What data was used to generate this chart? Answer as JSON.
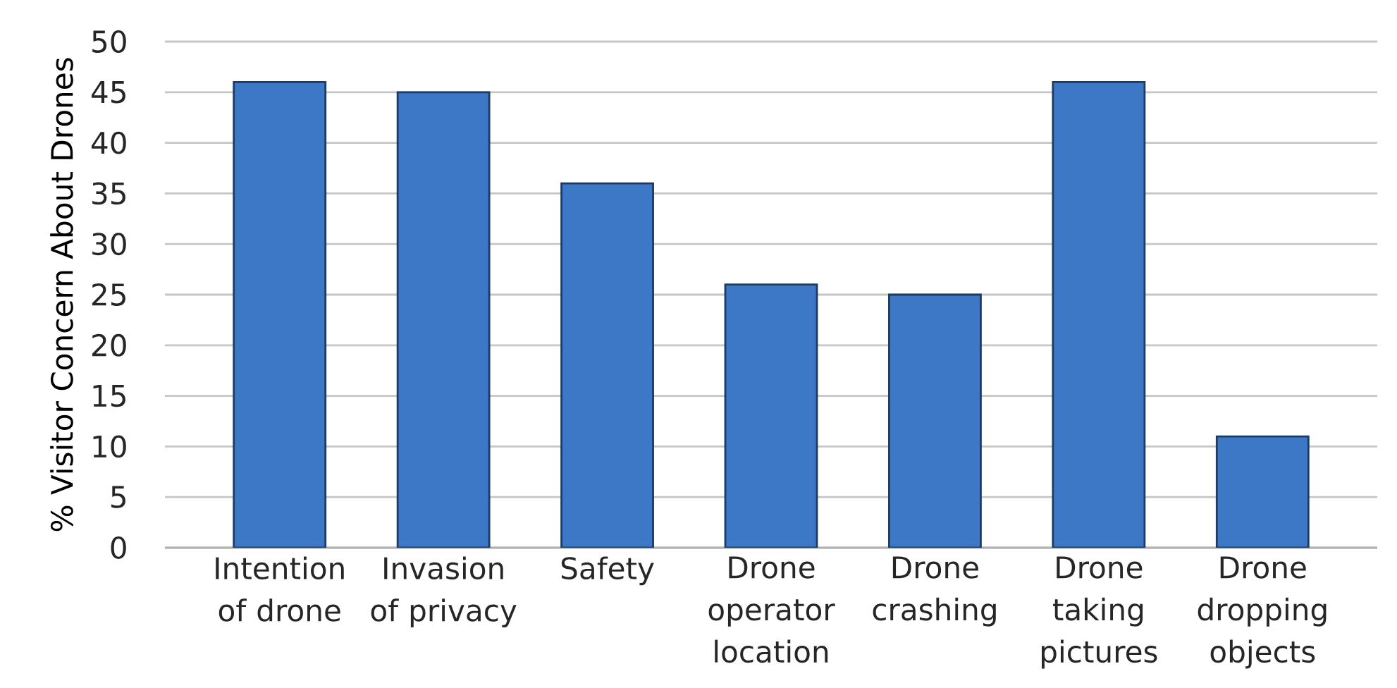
{
  "chart_data": {
    "type": "bar",
    "ylabel": "% Visitor Concern About Drones",
    "categories": [
      "Intention of drone",
      "Invasion of privacy",
      "Safety",
      "Drone operator location",
      "Drone crashing",
      "Drone taking pictures",
      "Drone dropping objects"
    ],
    "values": [
      46,
      45,
      36,
      26,
      25,
      46,
      11
    ],
    "color": "#3d78c6",
    "ylim": [
      0,
      50
    ],
    "yticks": [
      0,
      5,
      10,
      15,
      20,
      25,
      30,
      35,
      40,
      45,
      50
    ],
    "grid": "y"
  }
}
